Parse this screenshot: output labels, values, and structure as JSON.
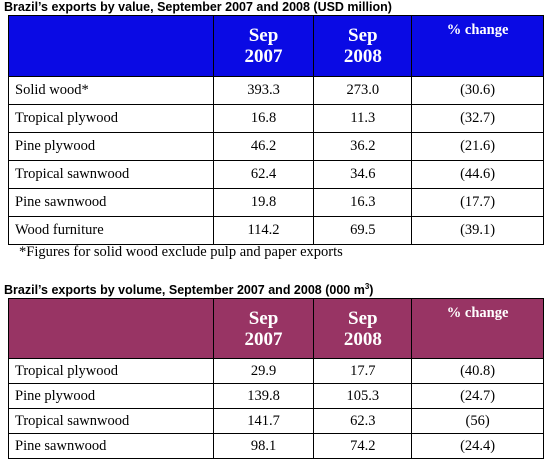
{
  "value_table": {
    "title": "Brazil’s exports by value, September 2007 and 2008 (USD million)",
    "headers": {
      "label": "",
      "col1_line1": "Sep",
      "col1_line2": "2007",
      "col2_line1": "Sep",
      "col2_line2": "2008",
      "col3": "% change"
    },
    "rows": [
      {
        "label": "Solid wood*",
        "v2007": "393.3",
        "v2008": "273.0",
        "change": "(30.6)"
      },
      {
        "label": "Tropical plywood",
        "v2007": "16.8",
        "v2008": "11.3",
        "change": "(32.7)"
      },
      {
        "label": "Pine plywood",
        "v2007": "46.2",
        "v2008": "36.2",
        "change": "(21.6)"
      },
      {
        "label": "Tropical sawnwood",
        "v2007": "62.4",
        "v2008": "34.6",
        "change": "(44.6)"
      },
      {
        "label": "Pine sawnwood",
        "v2007": "19.8",
        "v2008": "16.3",
        "change": "(17.7)"
      },
      {
        "label": "Wood furniture",
        "v2007": "114.2",
        "v2008": "69.5",
        "change": "(39.1)"
      }
    ],
    "footnote": "*Figures for solid wood exclude pulp and paper exports"
  },
  "volume_table": {
    "title": "Brazil’s exports by volume, September 2007 and 2008 (000 m",
    "title_sup": "3",
    "title_end": ")",
    "headers": {
      "label": "",
      "col1_line1": "Sep",
      "col1_line2": "2007",
      "col2_line1": "Sep",
      "col2_line2": "2008",
      "col3": "% change"
    },
    "rows": [
      {
        "label": "Tropical plywood",
        "v2007": "29.9",
        "v2008": "17.7",
        "change": "(40.8)"
      },
      {
        "label": "Pine plywood",
        "v2007": "139.8",
        "v2008": "105.3",
        "change": "(24.7)"
      },
      {
        "label": "Tropical sawnwood",
        "v2007": "141.7",
        "v2008": "62.3",
        "change": "(56)"
      },
      {
        "label": "Pine sawnwood",
        "v2007": "98.1",
        "v2008": "74.2",
        "change": "(24.4)"
      }
    ]
  },
  "colors": {
    "value_header_bg": "#0a0ae4",
    "volume_header_bg": "#983464",
    "header_text": "#ffffff"
  }
}
